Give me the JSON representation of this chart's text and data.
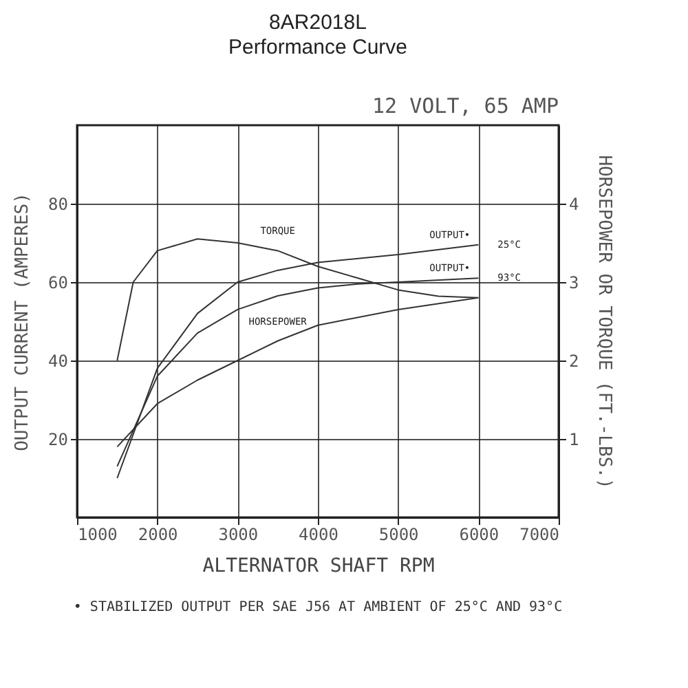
{
  "chart_data": {
    "type": "line",
    "title": "8AR2018L",
    "subtitle": "Performance Curve",
    "xlabel": "ALTERNATOR SHAFT RPM",
    "ylabel": "OUTPUT CURRENT (AMPERES)",
    "y2label": "HORSEPOWER OR TORQUE (FT.-LBS.)",
    "xlim": [
      1000,
      7000
    ],
    "xticks": [
      1000,
      2000,
      3000,
      4000,
      5000,
      6000,
      7000
    ],
    "ylim": [
      0,
      100
    ],
    "yticks": [
      20,
      40,
      60,
      80
    ],
    "y2lim": [
      0,
      5
    ],
    "y2ticks": [
      1,
      2,
      3,
      4
    ],
    "grid": true,
    "line_style": "solid",
    "series": [
      {
        "name": "OUTPUT•",
        "color": "#333333",
        "x": [
          1500,
          2000,
          2500,
          3000,
          3500,
          4000,
          5000,
          6000
        ],
        "values": [
          10,
          38,
          52,
          60,
          63,
          65,
          67,
          69.5
        ]
      },
      {
        "name": "OUTPUT•",
        "color": "#333333",
        "x": [
          1500,
          2000,
          2500,
          3000,
          3500,
          4000,
          4500,
          5000,
          6000
        ],
        "values": [
          13,
          36,
          47,
          53,
          56.5,
          58.5,
          59.5,
          60,
          61
        ]
      },
      {
        "name": "HORSEPOWER",
        "color": "#333333",
        "axis": "y2",
        "x": [
          1500,
          2000,
          2500,
          3000,
          3500,
          4000,
          5000,
          6000
        ],
        "values": [
          0.9,
          1.45,
          1.75,
          2.0,
          2.25,
          2.45,
          2.65,
          2.8
        ]
      },
      {
        "name": "TORQUE",
        "color": "#333333",
        "axis": "y2",
        "x": [
          1500,
          1700,
          2000,
          2500,
          3000,
          3500,
          4000,
          4500,
          5000,
          5500,
          6000
        ],
        "values": [
          2.0,
          3.0,
          3.4,
          3.55,
          3.5,
          3.4,
          3.2,
          3.05,
          2.9,
          2.82,
          2.8
        ]
      }
    ],
    "annotations": [
      "12 VOLT, 65 AMP",
      {
        "text": "25°C",
        "x": 6000,
        "y": 69.5
      },
      {
        "text": "93°C",
        "x": 6000,
        "y": 61
      },
      "• STABILIZED OUTPUT PER SAE J56 AT AMBIENT OF 25°C AND 93°C"
    ]
  }
}
